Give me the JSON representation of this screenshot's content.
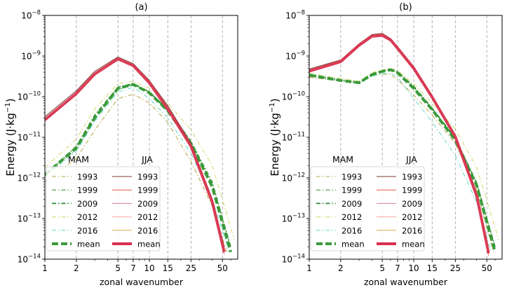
{
  "chart_data": [
    {
      "type": "line",
      "panel": "(a)",
      "xscale": "log",
      "yscale": "log",
      "xlim": [
        1,
        70
      ],
      "ylim": [
        1e-14,
        1e-08
      ],
      "xlabel": "zonal wavenumber",
      "ylabel_main": "Energy (J·kg",
      "ylabel_sup": "−1",
      "ylabel_close": ")",
      "xticks": [
        {
          "value": 1,
          "label": "1"
        },
        {
          "value": 2,
          "label": "2"
        },
        {
          "value": 5,
          "label": "5"
        },
        {
          "value": 7,
          "label": "7"
        },
        {
          "value": 10,
          "label": "10"
        },
        {
          "value": 15,
          "label": "15"
        },
        {
          "value": 25,
          "label": "25"
        },
        {
          "value": 50,
          "label": "50"
        }
      ],
      "yticks": [
        {
          "exp": -14,
          "base": "10",
          "sup": "−14"
        },
        {
          "exp": -13,
          "base": "10",
          "sup": "−13"
        },
        {
          "exp": -12,
          "base": "10",
          "sup": "−12"
        },
        {
          "exp": -11,
          "base": "10",
          "sup": "−11"
        },
        {
          "exp": -10,
          "base": "10",
          "sup": "−10"
        },
        {
          "exp": -9,
          "base": "10",
          "sup": "−9"
        },
        {
          "exp": -8,
          "base": "10",
          "sup": "−8"
        }
      ],
      "grid_x": [
        2,
        5,
        7,
        10,
        15,
        25,
        50
      ],
      "season_labels": {
        "left": "MAM",
        "right": "JJA"
      },
      "legend_location": "lower-left",
      "series": [
        {
          "name": "1993",
          "season": "MAM",
          "color": "#b5a543",
          "style": "dashdot",
          "width": 1,
          "x": [
            1,
            2,
            3,
            5,
            7,
            10,
            15,
            25,
            40,
            55
          ],
          "y": [
            8e-13,
            3e-12,
            1.5e-11,
            9e-11,
            1.15e-10,
            7e-11,
            2.3e-11,
            2.5e-12,
            2e-13,
            1.5e-14
          ]
        },
        {
          "name": "1999",
          "season": "MAM",
          "color": "#3f9a3f",
          "style": "dashdot",
          "width": 1.2,
          "x": [
            1,
            2,
            3,
            5,
            7,
            10,
            15,
            25,
            40,
            60
          ],
          "y": [
            1.2e-12,
            5e-12,
            3e-11,
            1.5e-10,
            2e-10,
            1.3e-10,
            5e-11,
            8e-12,
            8e-13,
            2e-14
          ]
        },
        {
          "name": "2009",
          "season": "MAM",
          "color": "#2e8b2e",
          "style": "dashdot",
          "width": 1.8,
          "x": [
            1,
            2,
            3,
            5,
            7,
            10,
            15,
            25,
            40,
            60
          ],
          "y": [
            1.2e-12,
            6e-12,
            3.5e-11,
            1.7e-10,
            2.1e-10,
            1.3e-10,
            4.5e-11,
            7e-12,
            7e-13,
            2e-14
          ]
        },
        {
          "name": "2012",
          "season": "MAM",
          "color": "#cfd96a",
          "style": "dashdot",
          "width": 1,
          "x": [
            1,
            2,
            3,
            5,
            7,
            10,
            15,
            25,
            40,
            65
          ],
          "y": [
            1.8e-12,
            9e-12,
            5e-11,
            2.1e-10,
            2.4e-10,
            1.6e-10,
            7e-11,
            1.5e-11,
            2e-12,
            3e-14
          ]
        },
        {
          "name": "2016",
          "season": "MAM",
          "color": "#62d9c4",
          "style": "dashdot",
          "width": 1,
          "x": [
            1,
            2,
            3,
            5,
            7,
            10,
            15,
            25,
            40,
            58
          ],
          "y": [
            1.1e-12,
            4.5e-12,
            2.5e-11,
            1.3e-10,
            1.7e-10,
            9e-11,
            3e-11,
            4e-12,
            3e-13,
            1.5e-14
          ]
        },
        {
          "name": "mean",
          "season": "MAM",
          "color": "#3a9a3a",
          "style": "dashed",
          "width": 4,
          "x": [
            1,
            2,
            3,
            5,
            7,
            10,
            15,
            25,
            40,
            60
          ],
          "y": [
            1.2e-12,
            5.5e-12,
            3e-11,
            1.6e-10,
            2e-10,
            1.25e-10,
            4.5e-11,
            7e-12,
            6e-13,
            1.5e-14
          ]
        },
        {
          "name": "1993",
          "season": "JJA",
          "color": "#7a3b2e",
          "style": "solid",
          "width": 1,
          "x": [
            1,
            2,
            3,
            5,
            7,
            10,
            15,
            25,
            40,
            52
          ],
          "y": [
            3.2e-11,
            1.4e-10,
            4.2e-10,
            9.5e-10,
            6.5e-10,
            2.5e-10,
            6e-11,
            7e-12,
            3e-13,
            2e-14
          ]
        },
        {
          "name": "1999",
          "season": "JJA",
          "color": "#e8564a",
          "style": "solid",
          "width": 1,
          "x": [
            1,
            2,
            3,
            5,
            7,
            10,
            15,
            25,
            40,
            52
          ],
          "y": [
            2.8e-11,
            1.2e-10,
            3.6e-10,
            8.5e-10,
            5.8e-10,
            2.2e-10,
            5e-11,
            6e-12,
            2.5e-13,
            1.5e-14
          ]
        },
        {
          "name": "2009",
          "season": "JJA",
          "color": "#d97aa6",
          "style": "solid",
          "width": 1,
          "x": [
            1,
            2,
            3,
            5,
            7,
            10,
            15,
            25,
            40,
            52
          ],
          "y": [
            2.5e-11,
            1.1e-10,
            3.4e-10,
            8e-10,
            5.5e-10,
            2e-10,
            4.5e-11,
            5.5e-12,
            2.2e-13,
            1.3e-14
          ]
        },
        {
          "name": "2012",
          "season": "JJA",
          "color": "#f2a8a0",
          "style": "solid",
          "width": 1,
          "x": [
            1,
            2,
            3,
            5,
            7,
            10,
            15,
            25,
            40,
            52
          ],
          "y": [
            2.6e-11,
            1.15e-10,
            3.5e-10,
            8.2e-10,
            5.6e-10,
            2.1e-10,
            4.8e-11,
            5.8e-12,
            2.4e-13,
            1.4e-14
          ]
        },
        {
          "name": "2016",
          "season": "JJA",
          "color": "#e6a84a",
          "style": "solid",
          "width": 1,
          "x": [
            1,
            2,
            3,
            5,
            7,
            10,
            15,
            25,
            40,
            52
          ],
          "y": [
            2.7e-11,
            1.2e-10,
            3.6e-10,
            8.4e-10,
            5.7e-10,
            2.15e-10,
            4.9e-11,
            6e-12,
            2.5e-13,
            1.45e-14
          ]
        },
        {
          "name": "mean",
          "season": "JJA",
          "color": "#d9304f",
          "style": "solid",
          "width": 4,
          "x": [
            1,
            2,
            3,
            5,
            7,
            10,
            15,
            25,
            40,
            52
          ],
          "y": [
            2.7e-11,
            1.2e-10,
            3.6e-10,
            8.5e-10,
            5.8e-10,
            2.2e-10,
            5e-11,
            6e-12,
            2.5e-13,
            1.5e-14
          ]
        }
      ]
    },
    {
      "type": "line",
      "panel": "(b)",
      "xscale": "log",
      "yscale": "log",
      "xlim": [
        1,
        70
      ],
      "ylim": [
        1e-14,
        1e-08
      ],
      "xlabel": "zonal wavenumber",
      "ylabel_main": "Energy (J·kg",
      "ylabel_sup": "−1",
      "ylabel_close": ")",
      "xticks": [
        {
          "value": 1,
          "label": "1"
        },
        {
          "value": 2,
          "label": "2"
        },
        {
          "value": 5,
          "label": "5"
        },
        {
          "value": 7,
          "label": "7"
        },
        {
          "value": 10,
          "label": "10"
        },
        {
          "value": 15,
          "label": "15"
        },
        {
          "value": 25,
          "label": "25"
        },
        {
          "value": 50,
          "label": "50"
        }
      ],
      "yticks": [
        {
          "exp": -14,
          "base": "10",
          "sup": "−14"
        },
        {
          "exp": -13,
          "base": "10",
          "sup": "−13"
        },
        {
          "exp": -12,
          "base": "10",
          "sup": "−12"
        },
        {
          "exp": -11,
          "base": "10",
          "sup": "−11"
        },
        {
          "exp": -10,
          "base": "10",
          "sup": "−10"
        },
        {
          "exp": -9,
          "base": "10",
          "sup": "−9"
        },
        {
          "exp": -8,
          "base": "10",
          "sup": "−8"
        }
      ],
      "grid_x": [
        2,
        5,
        7,
        10,
        15,
        25,
        50
      ],
      "season_labels": {
        "left": "MAM",
        "right": "JJA"
      },
      "legend_location": "lower-left",
      "series": [
        {
          "name": "1993",
          "season": "MAM",
          "color": "#b5a543",
          "style": "dashdot",
          "width": 1,
          "x": [
            1,
            2,
            3,
            4,
            5,
            6,
            7,
            10,
            15,
            25,
            40,
            58
          ],
          "y": [
            3e-10,
            2.4e-10,
            2.2e-10,
            3.2e-10,
            3.6e-10,
            3.5e-10,
            2.6e-10,
            1.1e-10,
            3.5e-11,
            7e-12,
            5e-13,
            1.5e-14
          ]
        },
        {
          "name": "1999",
          "season": "MAM",
          "color": "#3f9a3f",
          "style": "dashdot",
          "width": 1.2,
          "x": [
            1,
            2,
            3,
            4,
            5,
            6,
            7,
            10,
            15,
            25,
            40,
            60
          ],
          "y": [
            3.4e-10,
            2.6e-10,
            2.3e-10,
            3.6e-10,
            4.2e-10,
            4.6e-10,
            4e-10,
            1.7e-10,
            5e-11,
            9e-12,
            7e-13,
            2e-14
          ]
        },
        {
          "name": "2009",
          "season": "MAM",
          "color": "#2e8b2e",
          "style": "dashdot",
          "width": 1.8,
          "x": [
            1,
            2,
            3,
            4,
            5,
            6,
            7,
            10,
            15,
            25,
            40,
            60
          ],
          "y": [
            3.5e-10,
            2.5e-10,
            2.2e-10,
            3.5e-10,
            4.3e-10,
            4.8e-10,
            4.1e-10,
            1.8e-10,
            5.2e-11,
            9.5e-12,
            7.5e-13,
            2e-14
          ]
        },
        {
          "name": "2012",
          "season": "MAM",
          "color": "#cfd96a",
          "style": "dashdot",
          "width": 1,
          "x": [
            1,
            2,
            3,
            4,
            5,
            6,
            7,
            10,
            15,
            25,
            40,
            65
          ],
          "y": [
            3.8e-10,
            2.8e-10,
            2.4e-10,
            3.9e-10,
            4.6e-10,
            5e-10,
            4.4e-10,
            2.1e-10,
            7e-11,
            1.6e-11,
            1.8e-12,
            3e-14
          ]
        },
        {
          "name": "2016",
          "season": "MAM",
          "color": "#62d9c4",
          "style": "dashdot",
          "width": 1,
          "x": [
            1,
            2,
            3,
            4,
            5,
            6,
            7,
            10,
            15,
            25,
            40,
            55
          ],
          "y": [
            3.2e-10,
            2.4e-10,
            2.1e-10,
            3.2e-10,
            3.7e-10,
            3.8e-10,
            3e-10,
            9e-11,
            2.4e-11,
            3.5e-12,
            2.5e-13,
            1.5e-14
          ]
        },
        {
          "name": "mean",
          "season": "MAM",
          "color": "#3a9a3a",
          "style": "dashed",
          "width": 4,
          "x": [
            1,
            2,
            3,
            4,
            5,
            6,
            7,
            10,
            15,
            25,
            40,
            60
          ],
          "y": [
            3.4e-10,
            2.5e-10,
            2.2e-10,
            3.5e-10,
            4.2e-10,
            4.6e-10,
            3.9e-10,
            1.6e-10,
            4.8e-11,
            8.5e-12,
            6.5e-13,
            1.5e-14
          ]
        },
        {
          "name": "1993",
          "season": "JJA",
          "color": "#7a3b2e",
          "style": "solid",
          "width": 1,
          "x": [
            1,
            2,
            3,
            4,
            5,
            6,
            7,
            10,
            15,
            25,
            40,
            52
          ],
          "y": [
            4.8e-10,
            8e-10,
            2e-09,
            3.4e-09,
            3.6e-09,
            2.7e-09,
            1.7e-09,
            5.5e-10,
            1.05e-10,
            1.1e-11,
            4e-13,
            1.5e-14
          ]
        },
        {
          "name": "1999",
          "season": "JJA",
          "color": "#e8564a",
          "style": "solid",
          "width": 1,
          "x": [
            1,
            2,
            3,
            4,
            5,
            6,
            7,
            10,
            15,
            25,
            40,
            52
          ],
          "y": [
            4.2e-10,
            7.2e-10,
            1.8e-09,
            3e-09,
            3.2e-09,
            2.4e-09,
            1.5e-09,
            4.8e-10,
            9.5e-11,
            1e-11,
            3.5e-13,
            1.3e-14
          ]
        },
        {
          "name": "2009",
          "season": "JJA",
          "color": "#d97aa6",
          "style": "solid",
          "width": 1,
          "x": [
            1,
            2,
            3,
            4,
            5,
            6,
            7,
            10,
            15,
            25,
            40,
            52
          ],
          "y": [
            4e-10,
            6.8e-10,
            1.7e-09,
            2.9e-09,
            3e-09,
            2.3e-09,
            1.4e-09,
            4.5e-10,
            9e-11,
            9.5e-12,
            3.3e-13,
            1.2e-14
          ]
        },
        {
          "name": "2012",
          "season": "JJA",
          "color": "#f2a8a0",
          "style": "solid",
          "width": 1,
          "x": [
            1,
            2,
            3,
            4,
            5,
            6,
            7,
            10,
            15,
            25,
            40,
            52
          ],
          "y": [
            4.4e-10,
            7.5e-10,
            1.9e-09,
            3.1e-09,
            3.3e-09,
            2.5e-09,
            1.55e-09,
            5e-10,
            9.8e-11,
            1.05e-11,
            3.6e-13,
            1.3e-14
          ]
        },
        {
          "name": "2016",
          "season": "JJA",
          "color": "#e6a84a",
          "style": "solid",
          "width": 1,
          "x": [
            1,
            2,
            3,
            4,
            5,
            6,
            7,
            10,
            15,
            25,
            40,
            52
          ],
          "y": [
            4.3e-10,
            7.3e-10,
            1.85e-09,
            3e-09,
            3.2e-09,
            2.45e-09,
            1.5e-09,
            4.9e-10,
            9.6e-11,
            1.02e-11,
            3.5e-13,
            1.3e-14
          ]
        },
        {
          "name": "mean",
          "season": "JJA",
          "color": "#d9304f",
          "style": "solid",
          "width": 4,
          "x": [
            1,
            2,
            3,
            4,
            5,
            6,
            7,
            10,
            15,
            25,
            40,
            52
          ],
          "y": [
            4.3e-10,
            7.3e-10,
            1.85e-09,
            3.1e-09,
            3.25e-09,
            2.5e-09,
            1.55e-09,
            5e-10,
            9.7e-11,
            1.03e-11,
            3.6e-13,
            1.4e-14
          ]
        }
      ]
    }
  ]
}
